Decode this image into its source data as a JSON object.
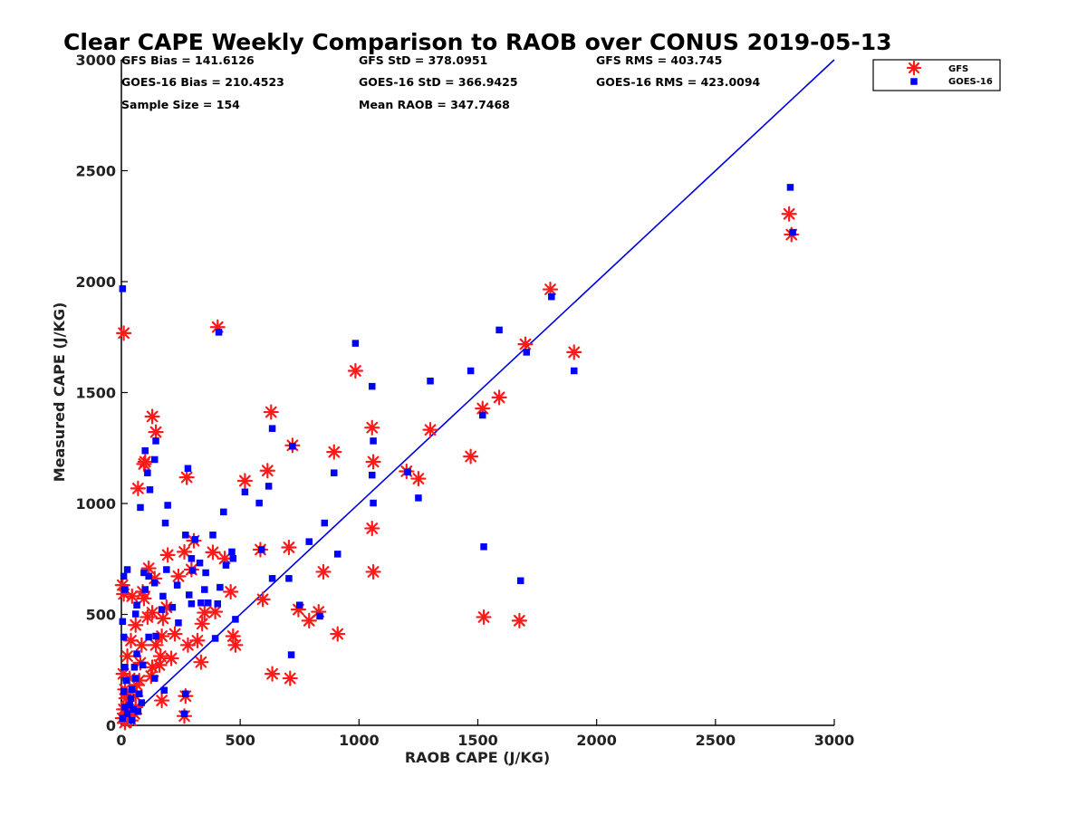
{
  "chart_data": {
    "type": "scatter",
    "title": "Clear CAPE Weekly Comparison to RAOB over CONUS 2019-05-13",
    "xlabel": "RAOB CAPE (J/KG)",
    "ylabel": "Measured CAPE (J/KG)",
    "xlim": [
      0,
      3000
    ],
    "ylim": [
      0,
      3000
    ],
    "xticks": [
      "0",
      "500",
      "1000",
      "1500",
      "2000",
      "2500",
      "3000"
    ],
    "yticks": [
      "0",
      "500",
      "1000",
      "1500",
      "2000",
      "2500",
      "3000"
    ],
    "grid": false,
    "legend_position": "top-right",
    "stats": [
      [
        "GFS Bias = 141.6126",
        "GFS StD = 378.0951",
        "GFS RMS = 403.745"
      ],
      [
        "GOES-16 Bias = 210.4523",
        "GOES-16 StD = 366.9425",
        "GOES-16 RMS = 423.0094"
      ],
      [
        "Sample Size = 154",
        "Mean RAOB = 347.7468",
        ""
      ]
    ],
    "reference_line": {
      "x": [
        0,
        3000
      ],
      "y": [
        0,
        3000
      ],
      "color": "#0000e0"
    },
    "series": [
      {
        "name": "GFS",
        "marker": "asterisk",
        "color": "#ff1a1a",
        "points": [
          [
            2810,
            2305
          ],
          [
            2820,
            2212
          ],
          [
            1805,
            1965
          ],
          [
            1700,
            1718
          ],
          [
            1905,
            1682
          ],
          [
            1590,
            1478
          ],
          [
            1520,
            1428
          ],
          [
            1470,
            1212
          ],
          [
            1525,
            488
          ],
          [
            1675,
            472
          ],
          [
            1300,
            1332
          ],
          [
            1250,
            1112
          ],
          [
            1200,
            1145
          ],
          [
            985,
            1598
          ],
          [
            1055,
            1342
          ],
          [
            1060,
            1188
          ],
          [
            1055,
            888
          ],
          [
            1060,
            692
          ],
          [
            895,
            1232
          ],
          [
            850,
            692
          ],
          [
            910,
            412
          ],
          [
            830,
            512
          ],
          [
            790,
            472
          ],
          [
            745,
            522
          ],
          [
            705,
            802
          ],
          [
            710,
            212
          ],
          [
            720,
            1262
          ],
          [
            630,
            1412
          ],
          [
            615,
            1148
          ],
          [
            635,
            232
          ],
          [
            585,
            792
          ],
          [
            595,
            568
          ],
          [
            520,
            1102
          ],
          [
            460,
            602
          ],
          [
            470,
            402
          ],
          [
            480,
            362
          ],
          [
            435,
            752
          ],
          [
            405,
            1795
          ],
          [
            385,
            780
          ],
          [
            395,
            512
          ],
          [
            350,
            508
          ],
          [
            340,
            458
          ],
          [
            335,
            285
          ],
          [
            320,
            382
          ],
          [
            295,
            702
          ],
          [
            305,
            832
          ],
          [
            275,
            1118
          ],
          [
            265,
            782
          ],
          [
            280,
            362
          ],
          [
            270,
            132
          ],
          [
            265,
            42
          ],
          [
            240,
            672
          ],
          [
            225,
            412
          ],
          [
            210,
            302
          ],
          [
            195,
            768
          ],
          [
            190,
            532
          ],
          [
            175,
            482
          ],
          [
            170,
            402
          ],
          [
            165,
            312
          ],
          [
            160,
            272
          ],
          [
            170,
            112
          ],
          [
            145,
            1322
          ],
          [
            130,
            1392
          ],
          [
            140,
            662
          ],
          [
            130,
            508
          ],
          [
            145,
            362
          ],
          [
            130,
            262
          ],
          [
            125,
            222
          ],
          [
            115,
            708
          ],
          [
            110,
            488
          ],
          [
            100,
            1188
          ],
          [
            95,
            1178
          ],
          [
            95,
            572
          ],
          [
            90,
            602
          ],
          [
            85,
            362
          ],
          [
            80,
            282
          ],
          [
            75,
            202
          ],
          [
            70,
            1068
          ],
          [
            60,
            452
          ],
          [
            65,
            182
          ],
          [
            60,
            132
          ],
          [
            45,
            582
          ],
          [
            40,
            382
          ],
          [
            35,
            212
          ],
          [
            25,
            312
          ],
          [
            30,
            132
          ],
          [
            20,
            72
          ],
          [
            10,
            1768
          ],
          [
            5,
            632
          ],
          [
            10,
            592
          ],
          [
            8,
            232
          ],
          [
            15,
            162
          ],
          [
            20,
            122
          ],
          [
            10,
            72
          ],
          [
            5,
            32
          ],
          [
            15,
            12
          ],
          [
            40,
            22
          ],
          [
            55,
            52
          ],
          [
            30,
            42
          ],
          [
            60,
            82
          ]
        ]
      },
      {
        "name": "GOES-16",
        "marker": "square",
        "color": "#0000ff",
        "points": [
          [
            2815,
            2425
          ],
          [
            2825,
            2222
          ],
          [
            1810,
            1932
          ],
          [
            1590,
            1782
          ],
          [
            1470,
            1598
          ],
          [
            1520,
            1398
          ],
          [
            1525,
            805
          ],
          [
            1680,
            652
          ],
          [
            1705,
            1682
          ],
          [
            1905,
            1598
          ],
          [
            1300,
            1552
          ],
          [
            1250,
            1025
          ],
          [
            1205,
            1142
          ],
          [
            985,
            1722
          ],
          [
            1055,
            1528
          ],
          [
            1060,
            1282
          ],
          [
            1055,
            1128
          ],
          [
            1060,
            1002
          ],
          [
            895,
            1138
          ],
          [
            855,
            912
          ],
          [
            910,
            772
          ],
          [
            790,
            828
          ],
          [
            835,
            492
          ],
          [
            750,
            542
          ],
          [
            720,
            1258
          ],
          [
            705,
            662
          ],
          [
            715,
            318
          ],
          [
            635,
            1338
          ],
          [
            620,
            1078
          ],
          [
            635,
            662
          ],
          [
            580,
            1002
          ],
          [
            590,
            792
          ],
          [
            520,
            1052
          ],
          [
            465,
            782
          ],
          [
            470,
            752
          ],
          [
            480,
            478
          ],
          [
            440,
            722
          ],
          [
            430,
            962
          ],
          [
            410,
            1772
          ],
          [
            385,
            858
          ],
          [
            405,
            548
          ],
          [
            415,
            622
          ],
          [
            395,
            392
          ],
          [
            365,
            552
          ],
          [
            355,
            688
          ],
          [
            350,
            612
          ],
          [
            335,
            552
          ],
          [
            330,
            732
          ],
          [
            310,
            838
          ],
          [
            300,
            698
          ],
          [
            295,
            548
          ],
          [
            285,
            588
          ],
          [
            280,
            1158
          ],
          [
            270,
            858
          ],
          [
            295,
            752
          ],
          [
            270,
            142
          ],
          [
            265,
            52
          ],
          [
            240,
            462
          ],
          [
            235,
            632
          ],
          [
            215,
            532
          ],
          [
            195,
            992
          ],
          [
            190,
            702
          ],
          [
            185,
            912
          ],
          [
            175,
            582
          ],
          [
            170,
            522
          ],
          [
            180,
            158
          ],
          [
            145,
            1282
          ],
          [
            140,
            1198
          ],
          [
            140,
            642
          ],
          [
            145,
            402
          ],
          [
            140,
            212
          ],
          [
            120,
            1062
          ],
          [
            115,
            672
          ],
          [
            115,
            398
          ],
          [
            110,
            1138
          ],
          [
            100,
            1238
          ],
          [
            100,
            612
          ],
          [
            95,
            688
          ],
          [
            90,
            272
          ],
          [
            80,
            982
          ],
          [
            65,
            542
          ],
          [
            60,
            502
          ],
          [
            65,
            322
          ],
          [
            55,
            262
          ],
          [
            60,
            212
          ],
          [
            45,
            162
          ],
          [
            40,
            122
          ],
          [
            35,
            92
          ],
          [
            25,
            702
          ],
          [
            15,
            612
          ],
          [
            10,
            672
          ],
          [
            5,
            1968
          ],
          [
            5,
            468
          ],
          [
            10,
            398
          ],
          [
            15,
            262
          ],
          [
            20,
            202
          ],
          [
            10,
            152
          ],
          [
            15,
            82
          ],
          [
            5,
            32
          ],
          [
            25,
            52
          ],
          [
            45,
            22
          ],
          [
            70,
            62
          ],
          [
            85,
            102
          ],
          [
            50,
            72
          ],
          [
            75,
            142
          ]
        ]
      }
    ]
  }
}
